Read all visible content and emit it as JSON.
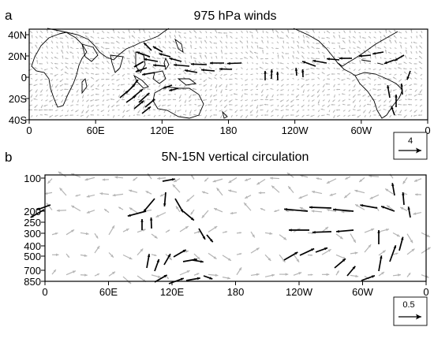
{
  "panel_a": {
    "letter": "a",
    "title": "975 hPa winds",
    "y_ticks": [
      "40N",
      "20N",
      "0",
      "20S",
      "40S"
    ],
    "x_ticks": [
      "0",
      "60E",
      "120E",
      "180",
      "120W",
      "60W",
      "0"
    ],
    "ref_vector_label": "4"
  },
  "panel_b": {
    "letter": "b",
    "title": "5N-15N vertical circulation",
    "y_ticks": [
      "100",
      "200",
      "250",
      "300",
      "400",
      "500",
      "700",
      "850"
    ],
    "x_ticks": [
      "0",
      "60E",
      "120E",
      "180",
      "120W",
      "60W",
      "0"
    ],
    "ref_vector_label": "0.5"
  },
  "colors": {
    "significant_vector": "#000000",
    "background_vector": "#b4b4b4",
    "land_outline": "#000000"
  }
}
